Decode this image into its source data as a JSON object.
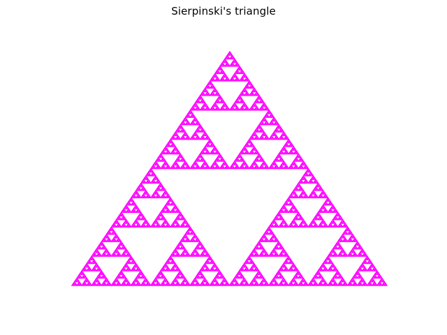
{
  "figure": {
    "title": "Sierpinski's triangle",
    "fractal": "sierpinski-triangle",
    "recursion_depth": 7,
    "line_color": "#ff00ff",
    "background_color": "#ffffff",
    "axes_visible": false
  }
}
